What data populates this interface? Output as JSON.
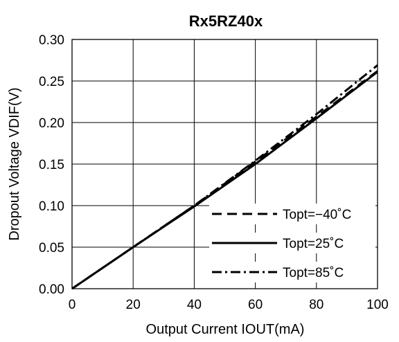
{
  "chart_data": {
    "type": "line",
    "title": "Rx5RZ40x",
    "xlabel": "Output Current IOUT(mA)",
    "ylabel": "Dropout Voltage VDIF(V)",
    "xlim": [
      0,
      100
    ],
    "ylim": [
      0,
      0.3
    ],
    "x_ticks": [
      "0",
      "20",
      "40",
      "60",
      "80",
      "100"
    ],
    "y_ticks": [
      "0.00",
      "0.05",
      "0.10",
      "0.15",
      "0.20",
      "0.25",
      "0.30"
    ],
    "grid": true,
    "legend_position": "bottom-right",
    "series": [
      {
        "name": "Topt=−40˚C",
        "style": "dashed",
        "x": [
          0,
          20,
          40,
          60,
          80,
          100
        ],
        "y": [
          0,
          0.05,
          0.1,
          0.153,
          0.207,
          0.262
        ]
      },
      {
        "name": "Topt=25˚C",
        "style": "solid",
        "x": [
          0,
          20,
          40,
          60,
          80,
          100
        ],
        "y": [
          0,
          0.05,
          0.099,
          0.15,
          0.205,
          0.261
        ]
      },
      {
        "name": "Topt=85˚C",
        "style": "dashdot",
        "x": [
          0,
          20,
          40,
          60,
          80,
          100
        ],
        "y": [
          0,
          0.05,
          0.1,
          0.154,
          0.21,
          0.269
        ]
      }
    ]
  }
}
